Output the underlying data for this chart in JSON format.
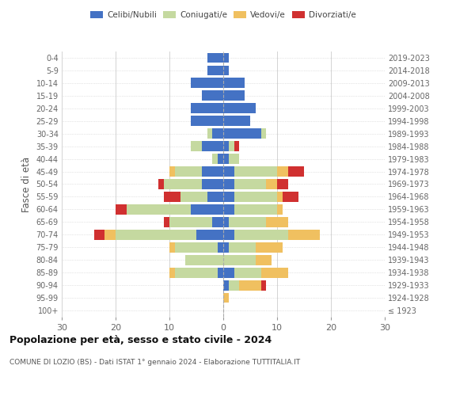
{
  "age_groups": [
    "100+",
    "95-99",
    "90-94",
    "85-89",
    "80-84",
    "75-79",
    "70-74",
    "65-69",
    "60-64",
    "55-59",
    "50-54",
    "45-49",
    "40-44",
    "35-39",
    "30-34",
    "25-29",
    "20-24",
    "15-19",
    "10-14",
    "5-9",
    "0-4"
  ],
  "birth_years": [
    "≤ 1923",
    "1924-1928",
    "1929-1933",
    "1934-1938",
    "1939-1943",
    "1944-1948",
    "1949-1953",
    "1954-1958",
    "1959-1963",
    "1964-1968",
    "1969-1973",
    "1974-1978",
    "1979-1983",
    "1984-1988",
    "1989-1993",
    "1994-1998",
    "1999-2003",
    "2004-2008",
    "2009-2013",
    "2014-2018",
    "2019-2023"
  ],
  "colors": {
    "celibi": "#4472C4",
    "coniugati": "#c5d9a0",
    "vedovi": "#f0c060",
    "divorziati": "#d03030"
  },
  "males": {
    "celibi": [
      0,
      0,
      0,
      1,
      0,
      1,
      5,
      2,
      6,
      3,
      4,
      4,
      1,
      4,
      2,
      6,
      6,
      4,
      6,
      3,
      3
    ],
    "coniugati": [
      0,
      0,
      0,
      8,
      7,
      8,
      15,
      8,
      12,
      5,
      7,
      5,
      1,
      2,
      1,
      0,
      0,
      0,
      0,
      0,
      0
    ],
    "vedovi": [
      0,
      0,
      0,
      1,
      0,
      1,
      2,
      0,
      0,
      0,
      0,
      1,
      0,
      0,
      0,
      0,
      0,
      0,
      0,
      0,
      0
    ],
    "divorziati": [
      0,
      0,
      0,
      0,
      0,
      0,
      2,
      1,
      2,
      3,
      1,
      0,
      0,
      0,
      0,
      0,
      0,
      0,
      0,
      0,
      0
    ]
  },
  "females": {
    "celibi": [
      0,
      0,
      1,
      2,
      0,
      1,
      2,
      1,
      2,
      2,
      2,
      2,
      1,
      1,
      7,
      5,
      6,
      4,
      4,
      1,
      1
    ],
    "coniugati": [
      0,
      0,
      2,
      5,
      6,
      5,
      10,
      7,
      8,
      8,
      6,
      8,
      2,
      1,
      1,
      0,
      0,
      0,
      0,
      0,
      0
    ],
    "vedovi": [
      0,
      1,
      4,
      5,
      3,
      5,
      6,
      4,
      1,
      1,
      2,
      2,
      0,
      0,
      0,
      0,
      0,
      0,
      0,
      0,
      0
    ],
    "divorziati": [
      0,
      0,
      1,
      0,
      0,
      0,
      0,
      0,
      0,
      3,
      2,
      3,
      0,
      1,
      0,
      0,
      0,
      0,
      0,
      0,
      0
    ]
  },
  "title_main": "Popolazione per età, sesso e stato civile - 2024",
  "title_sub": "COMUNE DI LOZIO (BS) - Dati ISTAT 1° gennaio 2024 - Elaborazione TUTTITALIA.IT",
  "ylabel_left": "Fasce di età",
  "xlim": 30,
  "legend_labels": [
    "Celibi/Nubili",
    "Coniugati/e",
    "Vedovi/e",
    "Divorziati/e"
  ],
  "background_color": "#ffffff",
  "grid_color": "#cccccc"
}
